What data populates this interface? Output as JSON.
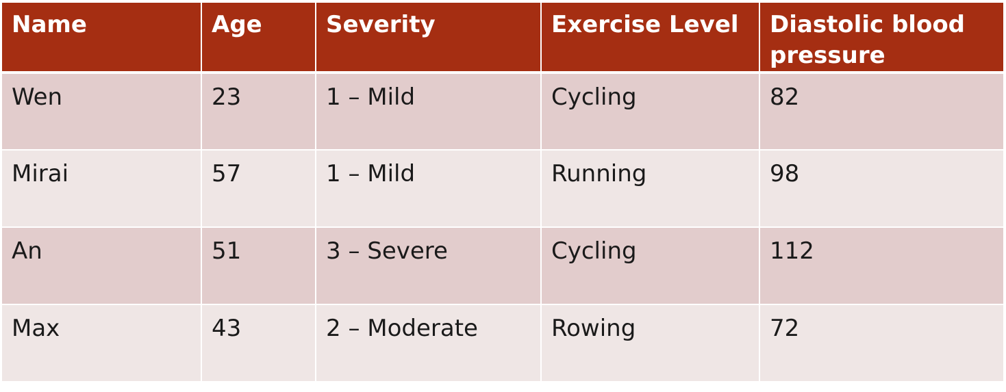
{
  "table": {
    "headers": [
      "Name",
      "Age",
      "Severity",
      "Exercise Level",
      "Diastolic blood pressure"
    ],
    "rows": [
      [
        "Wen",
        "23",
        "1 – Mild",
        "Cycling",
        "82"
      ],
      [
        "Mirai",
        "57",
        "1 – Mild",
        "Running",
        "98"
      ],
      [
        "An",
        "51",
        "3 – Severe",
        "Cycling",
        "112"
      ],
      [
        "Max",
        "43",
        "2 – Moderate",
        "Rowing",
        "72"
      ]
    ]
  },
  "colors": {
    "header_background": "#a52e12",
    "header_text": "#ffffff",
    "row_odd_background": "#e2cccc",
    "row_even_background": "#efe6e5"
  }
}
